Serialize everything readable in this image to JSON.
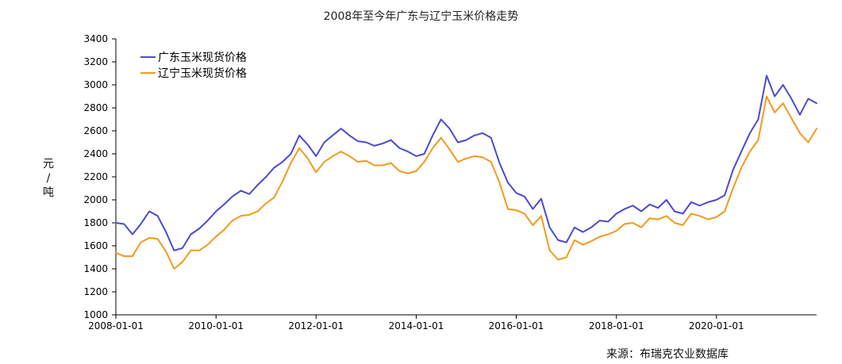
{
  "chart_data": {
    "type": "line",
    "title": "2008年至今年广东与辽宁玉米价格走势",
    "ylabel": "元/吨",
    "xlabel": "",
    "source": "来源：布瑞克农业数据库",
    "ylim": [
      1000,
      3400
    ],
    "yticks": [
      1000,
      1200,
      1400,
      1600,
      1800,
      2000,
      2200,
      2400,
      2600,
      2800,
      3000,
      3200,
      3400
    ],
    "xlim": [
      "2008-01-01",
      "2022-01-01"
    ],
    "xticks": [
      "2008-01-01",
      "2010-01-01",
      "2012-01-01",
      "2014-01-01",
      "2016-01-01",
      "2018-01-01",
      "2020-01-01"
    ],
    "grid": false,
    "legend": "top-left",
    "series": [
      {
        "name": "广东玉米现货价格",
        "color": "#4b4ad1",
        "points": [
          [
            "2008-01",
            1800
          ],
          [
            "2008-03",
            1790
          ],
          [
            "2008-05",
            1700
          ],
          [
            "2008-07",
            1790
          ],
          [
            "2008-09",
            1900
          ],
          [
            "2008-11",
            1860
          ],
          [
            "2009-01",
            1720
          ],
          [
            "2009-03",
            1560
          ],
          [
            "2009-05",
            1580
          ],
          [
            "2009-07",
            1700
          ],
          [
            "2009-09",
            1750
          ],
          [
            "2009-11",
            1820
          ],
          [
            "2010-01",
            1900
          ],
          [
            "2010-03",
            1960
          ],
          [
            "2010-05",
            2030
          ],
          [
            "2010-07",
            2080
          ],
          [
            "2010-09",
            2050
          ],
          [
            "2010-11",
            2130
          ],
          [
            "2011-01",
            2200
          ],
          [
            "2011-03",
            2280
          ],
          [
            "2011-05",
            2330
          ],
          [
            "2011-07",
            2400
          ],
          [
            "2011-09",
            2560
          ],
          [
            "2011-11",
            2480
          ],
          [
            "2012-01",
            2380
          ],
          [
            "2012-03",
            2500
          ],
          [
            "2012-05",
            2560
          ],
          [
            "2012-07",
            2620
          ],
          [
            "2012-09",
            2560
          ],
          [
            "2012-11",
            2510
          ],
          [
            "2013-01",
            2500
          ],
          [
            "2013-03",
            2470
          ],
          [
            "2013-05",
            2490
          ],
          [
            "2013-07",
            2520
          ],
          [
            "2013-09",
            2450
          ],
          [
            "2013-11",
            2420
          ],
          [
            "2014-01",
            2380
          ],
          [
            "2014-03",
            2400
          ],
          [
            "2014-05",
            2560
          ],
          [
            "2014-07",
            2700
          ],
          [
            "2014-09",
            2620
          ],
          [
            "2014-11",
            2500
          ],
          [
            "2015-01",
            2520
          ],
          [
            "2015-03",
            2560
          ],
          [
            "2015-05",
            2580
          ],
          [
            "2015-07",
            2540
          ],
          [
            "2015-09",
            2320
          ],
          [
            "2015-11",
            2150
          ],
          [
            "2016-01",
            2060
          ],
          [
            "2016-03",
            2030
          ],
          [
            "2016-05",
            1920
          ],
          [
            "2016-07",
            2010
          ],
          [
            "2016-09",
            1760
          ],
          [
            "2016-11",
            1650
          ],
          [
            "2017-01",
            1630
          ],
          [
            "2017-03",
            1760
          ],
          [
            "2017-05",
            1720
          ],
          [
            "2017-07",
            1760
          ],
          [
            "2017-09",
            1820
          ],
          [
            "2017-11",
            1810
          ],
          [
            "2018-01",
            1880
          ],
          [
            "2018-03",
            1920
          ],
          [
            "2018-05",
            1950
          ],
          [
            "2018-07",
            1900
          ],
          [
            "2018-09",
            1960
          ],
          [
            "2018-11",
            1930
          ],
          [
            "2019-01",
            2000
          ],
          [
            "2019-03",
            1900
          ],
          [
            "2019-05",
            1880
          ],
          [
            "2019-07",
            1980
          ],
          [
            "2019-09",
            1950
          ],
          [
            "2019-11",
            1980
          ],
          [
            "2020-01",
            2000
          ],
          [
            "2020-03",
            2040
          ],
          [
            "2020-05",
            2260
          ],
          [
            "2020-07",
            2420
          ],
          [
            "2020-09",
            2580
          ],
          [
            "2020-11",
            2700
          ],
          [
            "2021-01",
            3080
          ],
          [
            "2021-03",
            2900
          ],
          [
            "2021-05",
            3000
          ],
          [
            "2021-07",
            2880
          ],
          [
            "2021-09",
            2740
          ],
          [
            "2021-11",
            2880
          ],
          [
            "2022-01",
            2840
          ]
        ]
      },
      {
        "name": "辽宁玉米现货价格",
        "color": "#f39a1e",
        "points": [
          [
            "2008-01",
            1540
          ],
          [
            "2008-03",
            1510
          ],
          [
            "2008-05",
            1510
          ],
          [
            "2008-07",
            1630
          ],
          [
            "2008-09",
            1670
          ],
          [
            "2008-11",
            1660
          ],
          [
            "2009-01",
            1550
          ],
          [
            "2009-03",
            1400
          ],
          [
            "2009-05",
            1460
          ],
          [
            "2009-07",
            1560
          ],
          [
            "2009-09",
            1560
          ],
          [
            "2009-11",
            1610
          ],
          [
            "2010-01",
            1680
          ],
          [
            "2010-03",
            1740
          ],
          [
            "2010-05",
            1820
          ],
          [
            "2010-07",
            1860
          ],
          [
            "2010-09",
            1870
          ],
          [
            "2010-11",
            1900
          ],
          [
            "2011-01",
            1970
          ],
          [
            "2011-03",
            2020
          ],
          [
            "2011-05",
            2160
          ],
          [
            "2011-07",
            2320
          ],
          [
            "2011-09",
            2450
          ],
          [
            "2011-11",
            2360
          ],
          [
            "2012-01",
            2240
          ],
          [
            "2012-03",
            2330
          ],
          [
            "2012-05",
            2380
          ],
          [
            "2012-07",
            2420
          ],
          [
            "2012-09",
            2380
          ],
          [
            "2012-11",
            2330
          ],
          [
            "2013-01",
            2340
          ],
          [
            "2013-03",
            2300
          ],
          [
            "2013-05",
            2300
          ],
          [
            "2013-07",
            2320
          ],
          [
            "2013-09",
            2250
          ],
          [
            "2013-11",
            2230
          ],
          [
            "2014-01",
            2250
          ],
          [
            "2014-03",
            2330
          ],
          [
            "2014-05",
            2450
          ],
          [
            "2014-07",
            2540
          ],
          [
            "2014-09",
            2440
          ],
          [
            "2014-11",
            2330
          ],
          [
            "2015-01",
            2360
          ],
          [
            "2015-03",
            2380
          ],
          [
            "2015-05",
            2370
          ],
          [
            "2015-07",
            2330
          ],
          [
            "2015-09",
            2150
          ],
          [
            "2015-11",
            1920
          ],
          [
            "2016-01",
            1910
          ],
          [
            "2016-03",
            1880
          ],
          [
            "2016-05",
            1780
          ],
          [
            "2016-07",
            1860
          ],
          [
            "2016-09",
            1560
          ],
          [
            "2016-11",
            1480
          ],
          [
            "2017-01",
            1500
          ],
          [
            "2017-03",
            1650
          ],
          [
            "2017-05",
            1610
          ],
          [
            "2017-07",
            1640
          ],
          [
            "2017-09",
            1680
          ],
          [
            "2017-11",
            1700
          ],
          [
            "2018-01",
            1730
          ],
          [
            "2018-03",
            1790
          ],
          [
            "2018-05",
            1800
          ],
          [
            "2018-07",
            1760
          ],
          [
            "2018-09",
            1840
          ],
          [
            "2018-11",
            1830
          ],
          [
            "2019-01",
            1860
          ],
          [
            "2019-03",
            1800
          ],
          [
            "2019-05",
            1780
          ],
          [
            "2019-07",
            1880
          ],
          [
            "2019-09",
            1860
          ],
          [
            "2019-11",
            1830
          ],
          [
            "2020-01",
            1850
          ],
          [
            "2020-03",
            1900
          ],
          [
            "2020-05",
            2100
          ],
          [
            "2020-07",
            2280
          ],
          [
            "2020-09",
            2420
          ],
          [
            "2020-11",
            2520
          ],
          [
            "2021-01",
            2900
          ],
          [
            "2021-03",
            2760
          ],
          [
            "2021-05",
            2840
          ],
          [
            "2021-07",
            2710
          ],
          [
            "2021-09",
            2580
          ],
          [
            "2021-11",
            2500
          ],
          [
            "2022-01",
            2620
          ]
        ]
      }
    ]
  }
}
